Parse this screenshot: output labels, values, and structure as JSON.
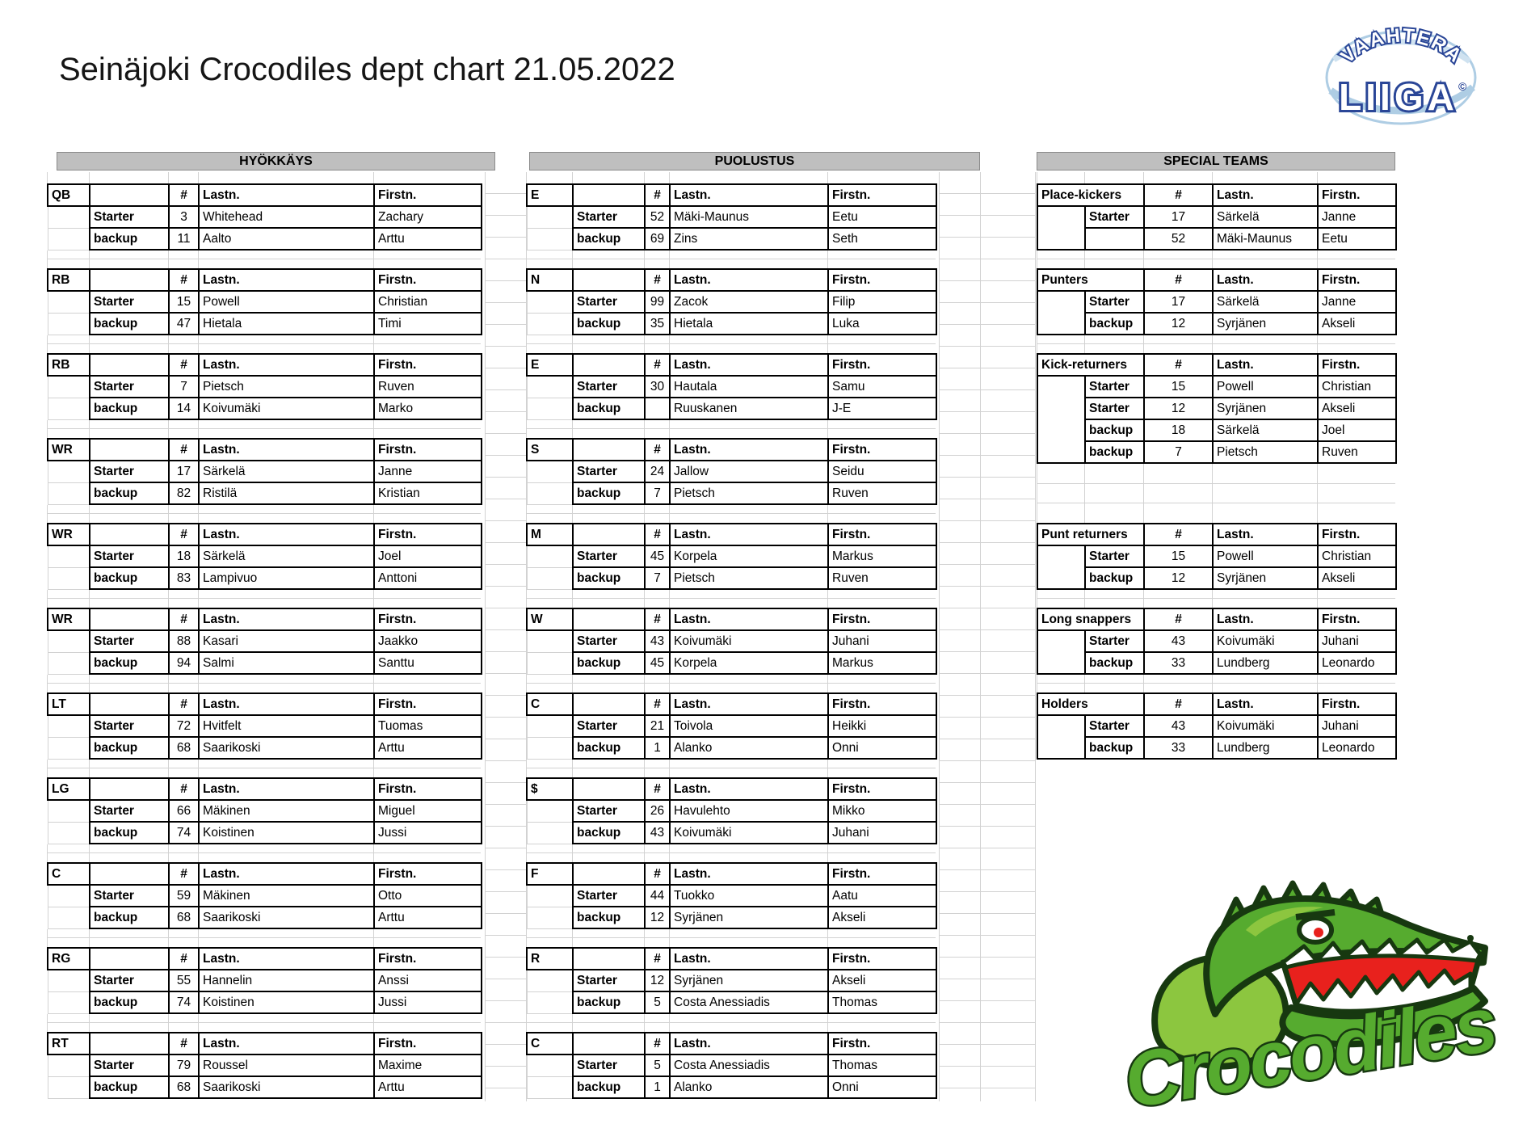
{
  "colors": {
    "bar_bg": "#bfbfbf",
    "table_border": "#000000",
    "grid": "#d2d2d2",
    "logo_green": "#56ab2f",
    "logo_light_green": "#8cc63f",
    "logo_dark": "#173810",
    "logo_red": "#e8211d",
    "logo_blue": "#2a4697",
    "logo_light_blue": "#aecde4"
  },
  "page": {
    "title": "Seinäjoki Crocodiles dept chart 21.05.2022"
  },
  "league_logo": {
    "arc_text": "VAAHTERA",
    "main_text": "LIIGA",
    "copyright_symbol": "©"
  },
  "team_logo": {
    "text": "Crocodiles"
  },
  "table_headers": {
    "num": "#",
    "last": "Lastn.",
    "first": "Firstn."
  },
  "sections": [
    {
      "header": "HYÖKKÄYS",
      "groups": [
        {
          "pos": "QB",
          "rows": [
            {
              "role": "Starter",
              "num": "3",
              "last": "Whitehead",
              "first": "Zachary"
            },
            {
              "role": "backup",
              "num": "11",
              "last": "Aalto",
              "first": "Arttu"
            }
          ]
        },
        {
          "pos": "RB",
          "rows": [
            {
              "role": "Starter",
              "num": "15",
              "last": "Powell",
              "first": "Christian"
            },
            {
              "role": "backup",
              "num": "47",
              "last": "Hietala",
              "first": "Timi"
            }
          ]
        },
        {
          "pos": "RB",
          "rows": [
            {
              "role": "Starter",
              "num": "7",
              "last": "Pietsch",
              "first": "Ruven"
            },
            {
              "role": "backup",
              "num": "14",
              "last": "Koivumäki",
              "first": "Marko"
            }
          ]
        },
        {
          "pos": "WR",
          "rows": [
            {
              "role": "Starter",
              "num": "17",
              "last": "Särkelä",
              "first": "Janne"
            },
            {
              "role": "backup",
              "num": "82",
              "last": "Ristilä",
              "first": "Kristian"
            }
          ]
        },
        {
          "pos": "WR",
          "rows": [
            {
              "role": "Starter",
              "num": "18",
              "last": "Särkelä",
              "first": "Joel"
            },
            {
              "role": "backup",
              "num": "83",
              "last": "Lampivuo",
              "first": "Anttoni"
            }
          ]
        },
        {
          "pos": "WR",
          "rows": [
            {
              "role": "Starter",
              "num": "88",
              "last": "Kasari",
              "first": "Jaakko"
            },
            {
              "role": "backup",
              "num": "94",
              "last": "Salmi",
              "first": "Santtu"
            }
          ]
        },
        {
          "pos": "LT",
          "rows": [
            {
              "role": "Starter",
              "num": "72",
              "last": "Hvitfelt",
              "first": "Tuomas"
            },
            {
              "role": "backup",
              "num": "68",
              "last": "Saarikoski",
              "first": "Arttu"
            }
          ]
        },
        {
          "pos": "LG",
          "rows": [
            {
              "role": "Starter",
              "num": "66",
              "last": "Mäkinen",
              "first": "Miguel"
            },
            {
              "role": "backup",
              "num": "74",
              "last": "Koistinen",
              "first": "Jussi"
            }
          ]
        },
        {
          "pos": "C",
          "rows": [
            {
              "role": "Starter",
              "num": "59",
              "last": "Mäkinen",
              "first": "Otto"
            },
            {
              "role": "backup",
              "num": "68",
              "last": "Saarikoski",
              "first": "Arttu"
            }
          ]
        },
        {
          "pos": "RG",
          "rows": [
            {
              "role": "Starter",
              "num": "55",
              "last": "Hannelin",
              "first": "Anssi"
            },
            {
              "role": "backup",
              "num": "74",
              "last": "Koistinen",
              "first": "Jussi"
            }
          ]
        },
        {
          "pos": "RT",
          "rows": [
            {
              "role": "Starter",
              "num": "79",
              "last": "Roussel",
              "first": "Maxime"
            },
            {
              "role": "backup",
              "num": "68",
              "last": "Saarikoski",
              "first": "Arttu"
            }
          ]
        }
      ]
    },
    {
      "header": "PUOLUSTUS",
      "groups": [
        {
          "pos": "E",
          "rows": [
            {
              "role": "Starter",
              "num": "52",
              "last": "Mäki-Maunus",
              "first": "Eetu"
            },
            {
              "role": "backup",
              "num": "69",
              "last": "Zins",
              "first": "Seth"
            }
          ]
        },
        {
          "pos": "N",
          "rows": [
            {
              "role": "Starter",
              "num": "99",
              "last": "Zacok",
              "first": "Filip"
            },
            {
              "role": "backup",
              "num": "35",
              "last": "Hietala",
              "first": "Luka"
            }
          ]
        },
        {
          "pos": "E",
          "rows": [
            {
              "role": "Starter",
              "num": "30",
              "last": "Hautala",
              "first": "Samu"
            },
            {
              "role": "backup",
              "num": "",
              "last": "Ruuskanen",
              "first": "J-E"
            }
          ]
        },
        {
          "pos": "S",
          "rows": [
            {
              "role": "Starter",
              "num": "24",
              "last": "Jallow",
              "first": "Seidu"
            },
            {
              "role": "backup",
              "num": "7",
              "last": "Pietsch",
              "first": "Ruven"
            }
          ]
        },
        {
          "pos": "M",
          "rows": [
            {
              "role": "Starter",
              "num": "45",
              "last": "Korpela",
              "first": "Markus"
            },
            {
              "role": "backup",
              "num": "7",
              "last": "Pietsch",
              "first": "Ruven"
            }
          ]
        },
        {
          "pos": "W",
          "rows": [
            {
              "role": "Starter",
              "num": "43",
              "last": "Koivumäki",
              "first": "Juhani"
            },
            {
              "role": "backup",
              "num": "45",
              "last": "Korpela",
              "first": "Markus"
            }
          ]
        },
        {
          "pos": "C",
          "rows": [
            {
              "role": "Starter",
              "num": "21",
              "last": "Toivola",
              "first": "Heikki"
            },
            {
              "role": "backup",
              "num": "1",
              "last": "Alanko",
              "first": "Onni"
            }
          ]
        },
        {
          "pos": "$",
          "rows": [
            {
              "role": "Starter",
              "num": "26",
              "last": "Havulehto",
              "first": "Mikko"
            },
            {
              "role": "backup",
              "num": "43",
              "last": "Koivumäki",
              "first": "Juhani"
            }
          ]
        },
        {
          "pos": "F",
          "rows": [
            {
              "role": "Starter",
              "num": "44",
              "last": "Tuokko",
              "first": "Aatu"
            },
            {
              "role": "backup",
              "num": "12",
              "last": "Syrjänen",
              "first": "Akseli"
            }
          ]
        },
        {
          "pos": "R",
          "rows": [
            {
              "role": "Starter",
              "num": "12",
              "last": "Syrjänen",
              "first": "Akseli"
            },
            {
              "role": "backup",
              "num": "5",
              "last": "Costa Anessiadis",
              "first": "Thomas"
            }
          ]
        },
        {
          "pos": "C",
          "rows": [
            {
              "role": "Starter",
              "num": "5",
              "last": "Costa Anessiadis",
              "first": "Thomas"
            },
            {
              "role": "backup",
              "num": "1",
              "last": "Alanko",
              "first": "Onni"
            }
          ]
        }
      ]
    },
    {
      "header": "SPECIAL TEAMS",
      "groups": [
        {
          "pos": "Place-kickers",
          "rows": [
            {
              "role": "Starter",
              "num": "17",
              "last": "Särkelä",
              "first": "Janne"
            },
            {
              "role": "",
              "num": "52",
              "last": "Mäki-Maunus",
              "first": "Eetu"
            }
          ]
        },
        {
          "pos": "Punters",
          "rows": [
            {
              "role": "Starter",
              "num": "17",
              "last": "Särkelä",
              "first": "Janne"
            },
            {
              "role": "backup",
              "num": "12",
              "last": "Syrjänen",
              "first": "Akseli"
            }
          ]
        },
        {
          "pos": "Kick-returners",
          "rows": [
            {
              "role": "Starter",
              "num": "15",
              "last": "Powell",
              "first": "Christian"
            },
            {
              "role": "Starter",
              "num": "12",
              "last": "Syrjänen",
              "first": "Akseli"
            },
            {
              "role": "backup",
              "num": "18",
              "last": "Särkelä",
              "first": "Joel"
            },
            {
              "role": "backup",
              "num": "7",
              "last": "Pietsch",
              "first": "Ruven"
            }
          ]
        },
        {
          "pos": "Punt returners",
          "rows": [
            {
              "role": "Starter",
              "num": "15",
              "last": "Powell",
              "first": "Christian"
            },
            {
              "role": "backup",
              "num": "12",
              "last": "Syrjänen",
              "first": "Akseli"
            }
          ]
        },
        {
          "pos": "Long snappers",
          "rows": [
            {
              "role": "Starter",
              "num": "43",
              "last": "Koivumäki",
              "first": "Juhani"
            },
            {
              "role": "backup",
              "num": "33",
              "last": "Lundberg",
              "first": "Leonardo"
            }
          ]
        },
        {
          "pos": "Holders",
          "rows": [
            {
              "role": "Starter",
              "num": "43",
              "last": "Koivumäki",
              "first": "Juhani"
            },
            {
              "role": "backup",
              "num": "33",
              "last": "Lundberg",
              "first": "Leonardo"
            }
          ]
        }
      ]
    }
  ]
}
